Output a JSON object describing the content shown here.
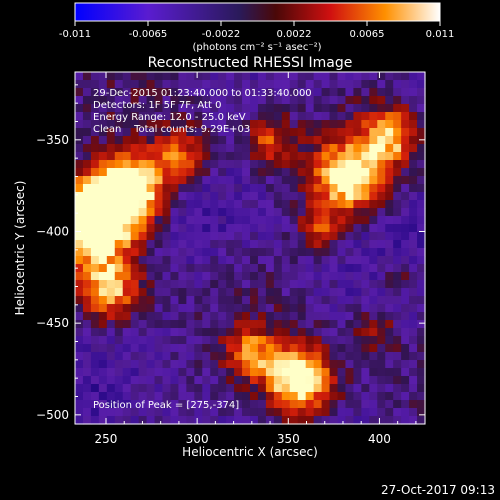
{
  "colorbar": {
    "ticks": [
      "-0.011",
      "-0.0065",
      "-0.0022",
      "0.0022",
      "0.0065",
      "0.011"
    ],
    "units": "(photons cm⁻² s⁻¹ asec⁻²)"
  },
  "title": "Reconstructed RHESSI Image",
  "annotations": {
    "time_range": "29-Dec-2015 01:23:40.000 to 01:33:40.000",
    "detectors": "Detectors: 1F 5F 7F, Att 0",
    "energy": "Energy Range: 12.0 - 25.0 keV",
    "clean": "Clean    Total counts: 9.29E+03",
    "peak": "Position of Peak = [275,-374]"
  },
  "footer": {
    "date": "27-Oct-2017 09:13"
  },
  "chart_data": {
    "type": "heatmap",
    "title": "Reconstructed RHESSI Image",
    "xlabel": "Heliocentric X (arcsec)",
    "ylabel": "Heliocentric Y (arcsec)",
    "xlim": [
      233,
      425
    ],
    "ylim": [
      -505,
      -313
    ],
    "xticks": [
      250,
      300,
      350,
      400
    ],
    "yticks": [
      -350,
      -400,
      -450,
      -500
    ],
    "color_range": [
      -0.011,
      0.011
    ],
    "peak_position": [
      275,
      -374
    ],
    "colormap": [
      "#0000ff",
      "#6a20c8",
      "#2a1a6a",
      "#c81018",
      "#ff9a00",
      "#ffffd0"
    ],
    "grid": false
  }
}
